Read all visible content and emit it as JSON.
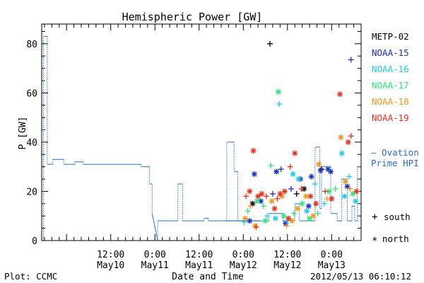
{
  "chart_data": {
    "type": "scatter",
    "title": "Hemispheric Power [GW]",
    "ylabel": "P [GW]",
    "xlabel": "Date and Time",
    "ylim": [
      0,
      88
    ],
    "y_ticks": [
      0,
      20,
      40,
      60,
      80
    ],
    "xlim": [
      "2012-05-09T17:15",
      "2012-05-13T08:00"
    ],
    "x_ticks": [
      {
        "t": "2012-05-10T12:00",
        "line1": "12:00",
        "line2": "May10"
      },
      {
        "t": "2012-05-11T00:00",
        "line1": "0:00",
        "line2": "May11"
      },
      {
        "t": "2012-05-11T12:00",
        "line1": "12:00",
        "line2": "May11"
      },
      {
        "t": "2012-05-12T00:00",
        "line1": "0:00",
        "line2": "May12"
      },
      {
        "t": "2012-05-12T12:00",
        "line1": "12:00",
        "line2": "May12"
      },
      {
        "t": "2012-05-13T00:00",
        "line1": "0:00",
        "line2": "May13"
      }
    ],
    "legend": [
      {
        "name": "METP-02",
        "color": "#000000"
      },
      {
        "name": "NOAA-15",
        "color": "#1a2fbf"
      },
      {
        "name": "NOAA-16",
        "color": "#22c8e8"
      },
      {
        "name": "NOAA-17",
        "color": "#33e27a"
      },
      {
        "name": "NOAA-18",
        "color": "#f0961e"
      },
      {
        "name": "NOAA-19",
        "color": "#e0321e"
      }
    ],
    "ovation": {
      "label": "Ovation Prime HPI",
      "label_line1": "— Ovation",
      "label_line2": "Prime HPI",
      "color": "#2a6fbf",
      "series": [
        [
          "2012-05-09T17:45",
          0
        ],
        [
          "2012-05-09T17:45",
          83
        ],
        [
          "2012-05-09T18:45",
          83
        ],
        [
          "2012-05-09T18:45",
          31
        ],
        [
          "2012-05-09T20:15",
          31
        ],
        [
          "2012-05-09T20:15",
          33
        ],
        [
          "2012-05-09T23:15",
          33
        ],
        [
          "2012-05-09T23:15",
          31
        ],
        [
          "2012-05-10T02:15",
          31
        ],
        [
          "2012-05-10T02:15",
          32
        ],
        [
          "2012-05-10T04:30",
          32
        ],
        [
          "2012-05-10T04:30",
          31
        ],
        [
          "2012-05-10T20:15",
          31
        ],
        [
          "2012-05-10T20:15",
          30
        ],
        [
          "2012-05-10T22:30",
          30
        ],
        [
          "2012-05-10T22:30",
          23
        ],
        [
          "2012-05-10T23:15",
          23
        ],
        [
          "2012-05-10T23:15",
          11
        ],
        [
          "2012-05-11T00:45",
          0
        ],
        [
          "2012-05-11T00:45",
          8
        ],
        [
          "2012-05-11T06:15",
          8
        ],
        [
          "2012-05-11T06:15",
          23
        ],
        [
          "2012-05-11T07:30",
          23
        ],
        [
          "2012-05-11T07:30",
          8
        ],
        [
          "2012-05-11T13:15",
          8
        ],
        [
          "2012-05-11T13:15",
          9
        ],
        [
          "2012-05-11T14:30",
          9
        ],
        [
          "2012-05-11T14:30",
          8
        ],
        [
          "2012-05-12T04:30",
          8
        ],
        [
          "2012-05-11T19:30",
          8
        ],
        [
          "2012-05-11T19:30",
          40
        ],
        [
          "2012-05-11T21:30",
          40
        ],
        [
          "2012-05-11T21:30",
          28
        ],
        [
          "2012-05-11T22:30",
          28
        ],
        [
          "2012-05-11T22:30",
          8
        ],
        [
          "2012-05-12T07:00",
          8
        ],
        [
          "2012-05-12T07:00",
          11
        ],
        [
          "2012-05-12T10:45",
          11
        ],
        [
          "2012-05-12T10:45",
          8
        ],
        [
          "2012-05-12T14:00",
          8
        ],
        [
          "2012-05-12T14:00",
          15
        ],
        [
          "2012-05-12T15:15",
          15
        ],
        [
          "2012-05-12T15:15",
          8
        ],
        [
          "2012-05-12T19:30",
          8
        ],
        [
          "2012-05-12T19:30",
          38
        ],
        [
          "2012-05-12T20:45",
          38
        ],
        [
          "2012-05-12T20:45",
          13
        ],
        [
          "2012-05-12T21:15",
          13
        ],
        [
          "2012-05-12T21:15",
          30
        ],
        [
          "2012-05-12T23:45",
          30
        ],
        [
          "2012-05-12T23:45",
          11
        ],
        [
          "2012-05-13T01:30",
          11
        ],
        [
          "2012-05-13T01:30",
          8
        ],
        [
          "2012-05-13T02:45",
          8
        ],
        [
          "2012-05-13T02:45",
          25
        ],
        [
          "2012-05-13T04:15",
          25
        ],
        [
          "2012-05-13T04:15",
          8
        ],
        [
          "2012-05-13T05:30",
          8
        ],
        [
          "2012-05-13T05:30",
          14
        ],
        [
          "2012-05-13T06:15",
          14
        ],
        [
          "2012-05-13T06:15",
          8
        ],
        [
          "2012-05-13T07:00",
          8
        ],
        [
          "2012-05-13T07:00",
          30
        ],
        [
          "2012-05-13T07:45",
          30
        ]
      ]
    },
    "markers": {
      "south": "+",
      "north": "*"
    },
    "points": [
      {
        "sat": "METP-02",
        "t": "2012-05-12T07:15",
        "v": 80,
        "m": "+"
      },
      {
        "sat": "METP-02",
        "t": "2012-05-12T14:30",
        "v": 19,
        "m": "+"
      },
      {
        "sat": "METP-02",
        "t": "2012-05-12T16:30",
        "v": 21,
        "m": "*"
      },
      {
        "sat": "METP-02",
        "t": "2012-05-12T21:15",
        "v": 29,
        "m": "+"
      },
      {
        "sat": "METP-02",
        "t": "2012-05-12T02:30",
        "v": 15,
        "m": "*"
      },
      {
        "sat": "NOAA-15",
        "t": "2012-05-13T05:15",
        "v": 73.5,
        "m": "+"
      },
      {
        "sat": "NOAA-15",
        "t": "2012-05-12T03:00",
        "v": 27,
        "m": "*"
      },
      {
        "sat": "NOAA-15",
        "t": "2012-05-12T09:00",
        "v": 28,
        "m": "*"
      },
      {
        "sat": "NOAA-15",
        "t": "2012-05-12T10:15",
        "v": 29,
        "m": "+"
      },
      {
        "sat": "NOAA-15",
        "t": "2012-05-12T15:30",
        "v": 25,
        "m": "*"
      },
      {
        "sat": "NOAA-15",
        "t": "2012-05-12T18:30",
        "v": 26,
        "m": "*"
      },
      {
        "sat": "NOAA-15",
        "t": "2012-05-12T21:00",
        "v": 28.5,
        "m": "*"
      },
      {
        "sat": "NOAA-15",
        "t": "2012-05-12T23:00",
        "v": 29,
        "m": "*"
      },
      {
        "sat": "NOAA-15",
        "t": "2012-05-12T23:45",
        "v": 28,
        "m": "*"
      },
      {
        "sat": "NOAA-15",
        "t": "2012-05-13T04:15",
        "v": 22,
        "m": "*"
      },
      {
        "sat": "NOAA-15",
        "t": "2012-05-12T04:45",
        "v": 16,
        "m": "*"
      },
      {
        "sat": "NOAA-15",
        "t": "2012-05-12T08:00",
        "v": 19,
        "m": "+"
      },
      {
        "sat": "NOAA-15",
        "t": "2012-05-12T13:00",
        "v": 21,
        "m": "+"
      },
      {
        "sat": "NOAA-15",
        "t": "2012-05-12T17:45",
        "v": 14,
        "m": "*"
      },
      {
        "sat": "NOAA-15",
        "t": "2012-05-12T01:45",
        "v": 8,
        "m": "*"
      },
      {
        "sat": "NOAA-15",
        "t": "2012-05-12T11:30",
        "v": 7,
        "m": "*"
      },
      {
        "sat": "NOAA-16",
        "t": "2012-05-12T09:45",
        "v": 55.5,
        "m": "+"
      },
      {
        "sat": "NOAA-16",
        "t": "2012-05-13T02:45",
        "v": 35.5,
        "m": "*"
      },
      {
        "sat": "NOAA-16",
        "t": "2012-05-12T13:30",
        "v": 27,
        "m": "*"
      },
      {
        "sat": "NOAA-16",
        "t": "2012-05-12T15:00",
        "v": 25,
        "m": "*"
      },
      {
        "sat": "NOAA-16",
        "t": "2012-05-12T19:30",
        "v": 23,
        "m": "+"
      },
      {
        "sat": "NOAA-16",
        "t": "2012-05-13T04:45",
        "v": 26,
        "m": "+"
      },
      {
        "sat": "NOAA-16",
        "t": "2012-05-12T00:15",
        "v": 7.5,
        "m": "+"
      },
      {
        "sat": "NOAA-16",
        "t": "2012-05-12T06:30",
        "v": 10,
        "m": "+"
      },
      {
        "sat": "NOAA-16",
        "t": "2012-05-12T12:00",
        "v": 8,
        "m": "+"
      },
      {
        "sat": "NOAA-16",
        "t": "2012-05-12T17:15",
        "v": 12,
        "m": "*"
      },
      {
        "sat": "NOAA-16",
        "t": "2012-05-13T03:30",
        "v": 18,
        "m": "*"
      },
      {
        "sat": "NOAA-16",
        "t": "2012-05-12T22:00",
        "v": 15,
        "m": "+"
      },
      {
        "sat": "NOAA-16",
        "t": "2012-05-12T08:45",
        "v": 9,
        "m": "*"
      },
      {
        "sat": "NOAA-16",
        "t": "2012-05-13T06:30",
        "v": 16,
        "m": "*"
      },
      {
        "sat": "NOAA-17",
        "t": "2012-05-12T09:30",
        "v": 60.5,
        "m": "*"
      },
      {
        "sat": "NOAA-17",
        "t": "2012-05-12T07:30",
        "v": 30.5,
        "m": "+"
      },
      {
        "sat": "NOAA-17",
        "t": "2012-05-12T01:15",
        "v": 12,
        "m": "+"
      },
      {
        "sat": "NOAA-17",
        "t": "2012-05-12T03:45",
        "v": 16,
        "m": "*"
      },
      {
        "sat": "NOAA-17",
        "t": "2012-05-12T05:30",
        "v": 14,
        "m": "+"
      },
      {
        "sat": "NOAA-17",
        "t": "2012-05-12T11:00",
        "v": 10,
        "m": "*"
      },
      {
        "sat": "NOAA-17",
        "t": "2012-05-12T13:45",
        "v": 11,
        "m": "+"
      },
      {
        "sat": "NOAA-17",
        "t": "2012-05-12T16:00",
        "v": 15,
        "m": "*"
      },
      {
        "sat": "NOAA-17",
        "t": "2012-05-12T18:00",
        "v": 9,
        "m": "*"
      },
      {
        "sat": "NOAA-17",
        "t": "2012-05-12T20:15",
        "v": 11,
        "m": "+"
      },
      {
        "sat": "NOAA-17",
        "t": "2012-05-12T23:15",
        "v": 20,
        "m": "*"
      },
      {
        "sat": "NOAA-17",
        "t": "2012-05-13T01:00",
        "v": 21,
        "m": "+"
      },
      {
        "sat": "NOAA-17",
        "t": "2012-05-13T05:45",
        "v": 19,
        "m": "*"
      },
      {
        "sat": "NOAA-17",
        "t": "2012-05-12T06:00",
        "v": 8,
        "m": "*"
      },
      {
        "sat": "NOAA-18",
        "t": "2012-05-13T02:30",
        "v": 42,
        "m": "*"
      },
      {
        "sat": "NOAA-18",
        "t": "2012-05-12T20:30",
        "v": 31,
        "m": "*"
      },
      {
        "sat": "NOAA-18",
        "t": "2012-05-12T00:30",
        "v": 9,
        "m": "*"
      },
      {
        "sat": "NOAA-18",
        "t": "2012-05-12T02:00",
        "v": 14,
        "m": "+"
      },
      {
        "sat": "NOAA-18",
        "t": "2012-05-12T03:15",
        "v": 6,
        "m": "*"
      },
      {
        "sat": "NOAA-18",
        "t": "2012-05-12T07:45",
        "v": 16,
        "m": "*"
      },
      {
        "sat": "NOAA-18",
        "t": "2012-05-12T10:30",
        "v": 18,
        "m": "*"
      },
      {
        "sat": "NOAA-18",
        "t": "2012-05-12T11:45",
        "v": 6,
        "m": "+"
      },
      {
        "sat": "NOAA-18",
        "t": "2012-05-12T14:45",
        "v": 13,
        "m": "*"
      },
      {
        "sat": "NOAA-18",
        "t": "2012-05-12T17:00",
        "v": 18,
        "m": "*"
      },
      {
        "sat": "NOAA-18",
        "t": "2012-05-12T19:00",
        "v": 10,
        "m": "*"
      },
      {
        "sat": "NOAA-18",
        "t": "2012-05-12T22:45",
        "v": 17,
        "m": "+"
      },
      {
        "sat": "NOAA-18",
        "t": "2012-05-13T03:45",
        "v": 24,
        "m": "*"
      },
      {
        "sat": "NOAA-18",
        "t": "2012-05-13T05:00",
        "v": 21,
        "m": "+"
      },
      {
        "sat": "NOAA-18",
        "t": "2012-05-12T13:15",
        "v": 8,
        "m": "*"
      },
      {
        "sat": "NOAA-19",
        "t": "2012-05-13T02:15",
        "v": 59.5,
        "m": "*"
      },
      {
        "sat": "NOAA-19",
        "t": "2012-05-13T04:30",
        "v": 40,
        "m": "*"
      },
      {
        "sat": "NOAA-19",
        "t": "2012-05-13T05:15",
        "v": 42.5,
        "m": "+"
      },
      {
        "sat": "NOAA-19",
        "t": "2012-05-12T02:45",
        "v": 36.5,
        "m": "*"
      },
      {
        "sat": "NOAA-19",
        "t": "2012-05-12T14:00",
        "v": 35.5,
        "m": "*"
      },
      {
        "sat": "NOAA-19",
        "t": "2012-05-12T12:45",
        "v": 30,
        "m": "+"
      },
      {
        "sat": "NOAA-19",
        "t": "2012-05-12T00:45",
        "v": 18,
        "m": "+"
      },
      {
        "sat": "NOAA-19",
        "t": "2012-05-12T01:45",
        "v": 20,
        "m": "*"
      },
      {
        "sat": "NOAA-19",
        "t": "2012-05-12T04:00",
        "v": 18,
        "m": "*"
      },
      {
        "sat": "NOAA-19",
        "t": "2012-05-12T05:00",
        "v": 19,
        "m": "*"
      },
      {
        "sat": "NOAA-19",
        "t": "2012-05-12T06:15",
        "v": 18,
        "m": "+"
      },
      {
        "sat": "NOAA-19",
        "t": "2012-05-12T08:30",
        "v": 13,
        "m": "*"
      },
      {
        "sat": "NOAA-19",
        "t": "2012-05-12T09:15",
        "v": 17,
        "m": "+"
      },
      {
        "sat": "NOAA-19",
        "t": "2012-05-12T11:15",
        "v": 20,
        "m": "*"
      },
      {
        "sat": "NOAA-19",
        "t": "2012-05-12T12:15",
        "v": 9,
        "m": "*"
      },
      {
        "sat": "NOAA-19",
        "t": "2012-05-12T15:45",
        "v": 21,
        "m": "+"
      },
      {
        "sat": "NOAA-19",
        "t": "2012-05-12T18:15",
        "v": 18,
        "m": "*"
      },
      {
        "sat": "NOAA-19",
        "t": "2012-05-12T19:45",
        "v": 15,
        "m": "*"
      },
      {
        "sat": "NOAA-19",
        "t": "2012-05-12T22:15",
        "v": 20,
        "m": "+"
      },
      {
        "sat": "NOAA-19",
        "t": "2012-05-13T00:00",
        "v": 17,
        "m": "*"
      },
      {
        "sat": "NOAA-19",
        "t": "2012-05-13T06:45",
        "v": 20,
        "m": "*"
      },
      {
        "sat": "NOAA-19",
        "t": "2012-05-12T10:00",
        "v": 19,
        "m": "*"
      },
      {
        "sat": "NOAA-19",
        "t": "2012-05-12T03:30",
        "v": 5.5,
        "m": "+"
      }
    ]
  },
  "marker_legend": {
    "south_symbol": "+",
    "south_label": "south",
    "north_symbol": "*",
    "north_label": "north"
  },
  "footer": {
    "left": "Plot: CCMC",
    "right": "2012/05/13 06:10:12"
  }
}
